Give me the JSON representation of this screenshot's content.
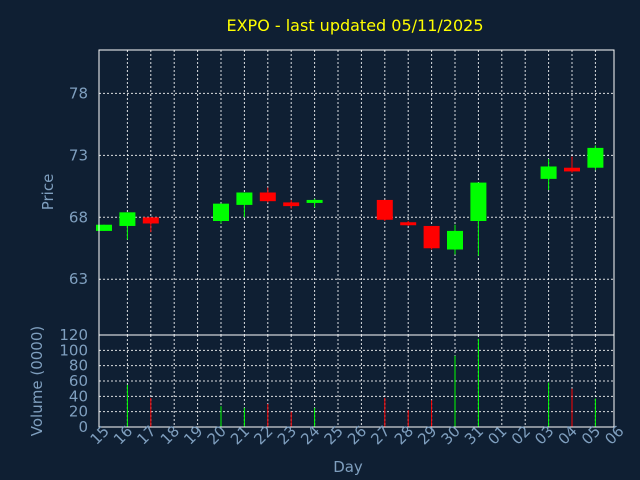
{
  "chart_data": [
    {
      "type": "candlestick",
      "title": "EXPO - last updated 05/11/2025",
      "ylabel": "Price",
      "ylim": [
        58.5,
        81.5
      ],
      "yticks": [
        63,
        68,
        73,
        78
      ],
      "grid": true,
      "colors": {
        "up": "#00ff00",
        "down": "#ff0000"
      },
      "categories": [
        "15",
        "16",
        "17",
        "18",
        "19",
        "20",
        "21",
        "22",
        "23",
        "24",
        "25",
        "26",
        "27",
        "28",
        "29",
        "30",
        "31",
        "01",
        "02",
        "03",
        "04",
        "05",
        "06"
      ],
      "candles": [
        {
          "day": "15",
          "open": 66.9,
          "close": 67.4,
          "high": 67.4,
          "low": 66.9
        },
        {
          "day": "16",
          "open": 67.3,
          "close": 68.4,
          "high": 68.4,
          "low": 66.2
        },
        {
          "day": "17",
          "open": 68.0,
          "close": 67.5,
          "high": 68.0,
          "low": 66.8
        },
        {
          "day": "20",
          "open": 67.7,
          "close": 69.1,
          "high": 69.1,
          "low": 67.5
        },
        {
          "day": "21",
          "open": 69.0,
          "close": 70.0,
          "high": 70.0,
          "low": 68.0
        },
        {
          "day": "22",
          "open": 70.0,
          "close": 69.3,
          "high": 70.4,
          "low": 69.2
        },
        {
          "day": "23",
          "open": 69.2,
          "close": 68.9,
          "high": 69.4,
          "low": 68.7
        },
        {
          "day": "24",
          "open": 69.2,
          "close": 69.4,
          "high": 69.5,
          "low": 68.8
        },
        {
          "day": "27",
          "open": 69.4,
          "close": 67.8,
          "high": 69.4,
          "low": 67.7
        },
        {
          "day": "28",
          "open": 67.6,
          "close": 67.4,
          "high": 67.7,
          "low": 67.3
        },
        {
          "day": "29",
          "open": 67.3,
          "close": 65.5,
          "high": 67.3,
          "low": 65.4
        },
        {
          "day": "30",
          "open": 65.4,
          "close": 66.9,
          "high": 67.4,
          "low": 65.0
        },
        {
          "day": "31",
          "open": 67.7,
          "close": 70.8,
          "high": 70.8,
          "low": 64.9
        },
        {
          "day": "03",
          "open": 71.1,
          "close": 72.1,
          "high": 72.7,
          "low": 70.2
        },
        {
          "day": "04",
          "open": 72.0,
          "close": 71.7,
          "high": 72.9,
          "low": 71.6
        },
        {
          "day": "05",
          "open": 72.0,
          "close": 73.6,
          "high": 73.8,
          "low": 71.8
        }
      ]
    },
    {
      "type": "bar",
      "ylabel": "Volume (0000)",
      "xlabel": "Day",
      "ylim": [
        0,
        120
      ],
      "yticks": [
        0,
        20,
        40,
        60,
        80,
        100,
        120
      ],
      "grid": true,
      "categories": [
        "15",
        "16",
        "17",
        "18",
        "19",
        "20",
        "21",
        "22",
        "23",
        "24",
        "25",
        "26",
        "27",
        "28",
        "29",
        "30",
        "31",
        "01",
        "02",
        "03",
        "04",
        "05",
        "06"
      ],
      "volumes": [
        {
          "day": "16",
          "value": 55,
          "dir": "up"
        },
        {
          "day": "17",
          "value": 38,
          "dir": "down"
        },
        {
          "day": "20",
          "value": 27,
          "dir": "up"
        },
        {
          "day": "21",
          "value": 25,
          "dir": "up"
        },
        {
          "day": "22",
          "value": 30,
          "dir": "down"
        },
        {
          "day": "23",
          "value": 20,
          "dir": "down"
        },
        {
          "day": "24",
          "value": 25,
          "dir": "up"
        },
        {
          "day": "27",
          "value": 38,
          "dir": "down"
        },
        {
          "day": "28",
          "value": 22,
          "dir": "down"
        },
        {
          "day": "29",
          "value": 35,
          "dir": "down"
        },
        {
          "day": "30",
          "value": 93,
          "dir": "up"
        },
        {
          "day": "31",
          "value": 115,
          "dir": "up"
        },
        {
          "day": "03",
          "value": 58,
          "dir": "up"
        },
        {
          "day": "04",
          "value": 50,
          "dir": "down"
        },
        {
          "day": "05",
          "value": 37,
          "dir": "up"
        }
      ]
    }
  ]
}
